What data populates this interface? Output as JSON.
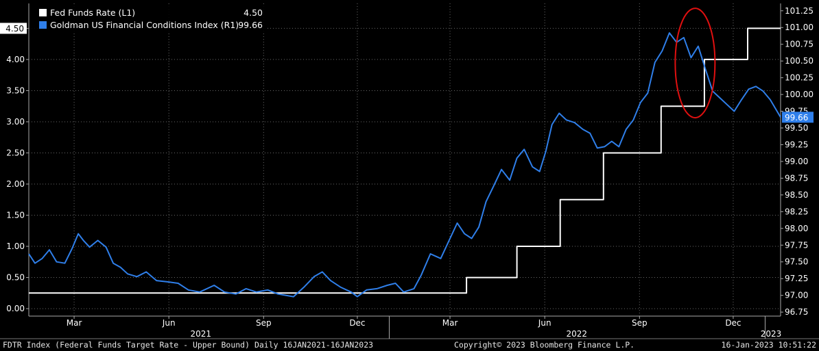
{
  "chart_data": {
    "type": "line",
    "left_axis": {
      "ticks": [
        "0.00",
        "0.50",
        "1.00",
        "1.50",
        "2.00",
        "2.50",
        "3.00",
        "3.50",
        "4.00",
        "4.50"
      ],
      "range": [
        -0.12,
        4.9
      ],
      "current_label": "4.50"
    },
    "right_axis": {
      "ticks": [
        "96.75",
        "97.00",
        "97.25",
        "97.50",
        "97.75",
        "98.00",
        "98.25",
        "98.50",
        "98.75",
        "99.00",
        "99.25",
        "99.50",
        "99.75",
        "100.00",
        "100.25",
        "100.50",
        "100.75",
        "101.00",
        "101.25"
      ],
      "range": [
        96.69,
        101.36
      ],
      "current_label": "99.66"
    },
    "x_axis": {
      "month_labels": [
        {
          "label": "Mar",
          "date": "2021-03-01"
        },
        {
          "label": "Jun",
          "date": "2021-06-01"
        },
        {
          "label": "Sep",
          "date": "2021-09-01"
        },
        {
          "label": "Dec",
          "date": "2021-12-01"
        },
        {
          "label": "Mar",
          "date": "2022-03-01"
        },
        {
          "label": "Jun",
          "date": "2022-06-01"
        },
        {
          "label": "Sep",
          "date": "2022-09-01"
        },
        {
          "label": "Dec",
          "date": "2022-12-01"
        }
      ],
      "year_labels": [
        {
          "label": "2021",
          "date": "2021-07-02"
        },
        {
          "label": "2022",
          "date": "2022-07-02"
        },
        {
          "label": "2023",
          "date": "2023-01-08"
        }
      ],
      "year_separators": [
        "2022-01-01",
        "2023-01-01"
      ],
      "range": [
        "2021-01-16",
        "2023-01-16"
      ]
    },
    "grid": true,
    "legend_position": "top-left",
    "series": [
      {
        "name": "Fed Funds Rate (L1)",
        "value_label": "4.50",
        "axis": "left",
        "color": "#ffffff",
        "step": true,
        "points": [
          [
            "2021-01-16",
            0.25
          ],
          [
            "2022-03-17",
            0.5
          ],
          [
            "2022-05-05",
            1.0
          ],
          [
            "2022-06-16",
            1.75
          ],
          [
            "2022-07-28",
            2.5
          ],
          [
            "2022-09-22",
            3.25
          ],
          [
            "2022-11-03",
            4.0
          ],
          [
            "2022-12-15",
            4.5
          ],
          [
            "2023-01-16",
            4.5
          ]
        ]
      },
      {
        "name": "Goldman US Financial Conditions Index (R1)",
        "value_label": "99.66",
        "axis": "right",
        "color": "#2f7fea",
        "points": [
          [
            "2021-01-16",
            97.62
          ],
          [
            "2021-01-22",
            97.48
          ],
          [
            "2021-01-29",
            97.55
          ],
          [
            "2021-02-05",
            97.68
          ],
          [
            "2021-02-12",
            97.5
          ],
          [
            "2021-02-20",
            97.48
          ],
          [
            "2021-02-27",
            97.7
          ],
          [
            "2021-03-05",
            97.92
          ],
          [
            "2021-03-10",
            97.82
          ],
          [
            "2021-03-16",
            97.72
          ],
          [
            "2021-03-24",
            97.82
          ],
          [
            "2021-04-01",
            97.72
          ],
          [
            "2021-04-08",
            97.48
          ],
          [
            "2021-04-15",
            97.42
          ],
          [
            "2021-04-22",
            97.32
          ],
          [
            "2021-05-01",
            97.28
          ],
          [
            "2021-05-10",
            97.35
          ],
          [
            "2021-05-20",
            97.22
          ],
          [
            "2021-06-01",
            97.2
          ],
          [
            "2021-06-10",
            97.18
          ],
          [
            "2021-06-20",
            97.08
          ],
          [
            "2021-07-01",
            97.05
          ],
          [
            "2021-07-15",
            97.15
          ],
          [
            "2021-07-25",
            97.05
          ],
          [
            "2021-08-05",
            97.02
          ],
          [
            "2021-08-15",
            97.1
          ],
          [
            "2021-08-25",
            97.05
          ],
          [
            "2021-09-05",
            97.08
          ],
          [
            "2021-09-15",
            97.02
          ],
          [
            "2021-09-30",
            96.98
          ],
          [
            "2021-10-10",
            97.12
          ],
          [
            "2021-10-20",
            97.28
          ],
          [
            "2021-10-28",
            97.35
          ],
          [
            "2021-11-05",
            97.22
          ],
          [
            "2021-11-15",
            97.12
          ],
          [
            "2021-11-25",
            97.05
          ],
          [
            "2021-12-01",
            96.98
          ],
          [
            "2021-12-10",
            97.08
          ],
          [
            "2021-12-20",
            97.1
          ],
          [
            "2021-12-30",
            97.15
          ],
          [
            "2022-01-07",
            97.18
          ],
          [
            "2022-01-15",
            97.05
          ],
          [
            "2022-01-25",
            97.1
          ],
          [
            "2022-02-01",
            97.3
          ],
          [
            "2022-02-10",
            97.62
          ],
          [
            "2022-02-20",
            97.55
          ],
          [
            "2022-03-01",
            97.85
          ],
          [
            "2022-03-08",
            98.08
          ],
          [
            "2022-03-15",
            97.92
          ],
          [
            "2022-03-22",
            97.85
          ],
          [
            "2022-03-29",
            98.02
          ],
          [
            "2022-04-05",
            98.4
          ],
          [
            "2022-04-12",
            98.62
          ],
          [
            "2022-04-20",
            98.88
          ],
          [
            "2022-04-28",
            98.72
          ],
          [
            "2022-05-05",
            99.05
          ],
          [
            "2022-05-12",
            99.18
          ],
          [
            "2022-05-20",
            98.92
          ],
          [
            "2022-05-27",
            98.85
          ],
          [
            "2022-06-02",
            99.15
          ],
          [
            "2022-06-08",
            99.55
          ],
          [
            "2022-06-15",
            99.72
          ],
          [
            "2022-06-22",
            99.62
          ],
          [
            "2022-06-30",
            99.58
          ],
          [
            "2022-07-08",
            99.48
          ],
          [
            "2022-07-15",
            99.42
          ],
          [
            "2022-07-22",
            99.2
          ],
          [
            "2022-07-29",
            99.22
          ],
          [
            "2022-08-05",
            99.3
          ],
          [
            "2022-08-12",
            99.22
          ],
          [
            "2022-08-19",
            99.48
          ],
          [
            "2022-08-26",
            99.62
          ],
          [
            "2022-09-02",
            99.88
          ],
          [
            "2022-09-09",
            100.02
          ],
          [
            "2022-09-16",
            100.48
          ],
          [
            "2022-09-23",
            100.65
          ],
          [
            "2022-09-30",
            100.92
          ],
          [
            "2022-10-07",
            100.78
          ],
          [
            "2022-10-14",
            100.85
          ],
          [
            "2022-10-21",
            100.55
          ],
          [
            "2022-10-28",
            100.72
          ],
          [
            "2022-11-04",
            100.38
          ],
          [
            "2022-11-11",
            100.05
          ],
          [
            "2022-11-18",
            99.95
          ],
          [
            "2022-11-25",
            99.85
          ],
          [
            "2022-12-02",
            99.75
          ],
          [
            "2022-12-09",
            99.92
          ],
          [
            "2022-12-16",
            100.08
          ],
          [
            "2022-12-23",
            100.12
          ],
          [
            "2022-12-30",
            100.05
          ],
          [
            "2023-01-06",
            99.92
          ],
          [
            "2023-01-16",
            99.66
          ]
        ]
      }
    ],
    "annotation": {
      "type": "ellipse",
      "color": "#e01010",
      "cx_date": "2022-10-25",
      "cy_value": 100.47
    }
  },
  "footer": {
    "left": "FDTR Index (Federal Funds Target Rate - Upper Bound)  Daily 16JAN2021-16JAN2023",
    "center": "Copyright© 2023 Bloomberg Finance L.P.",
    "right": "16-Jan-2023  10:51:22"
  }
}
